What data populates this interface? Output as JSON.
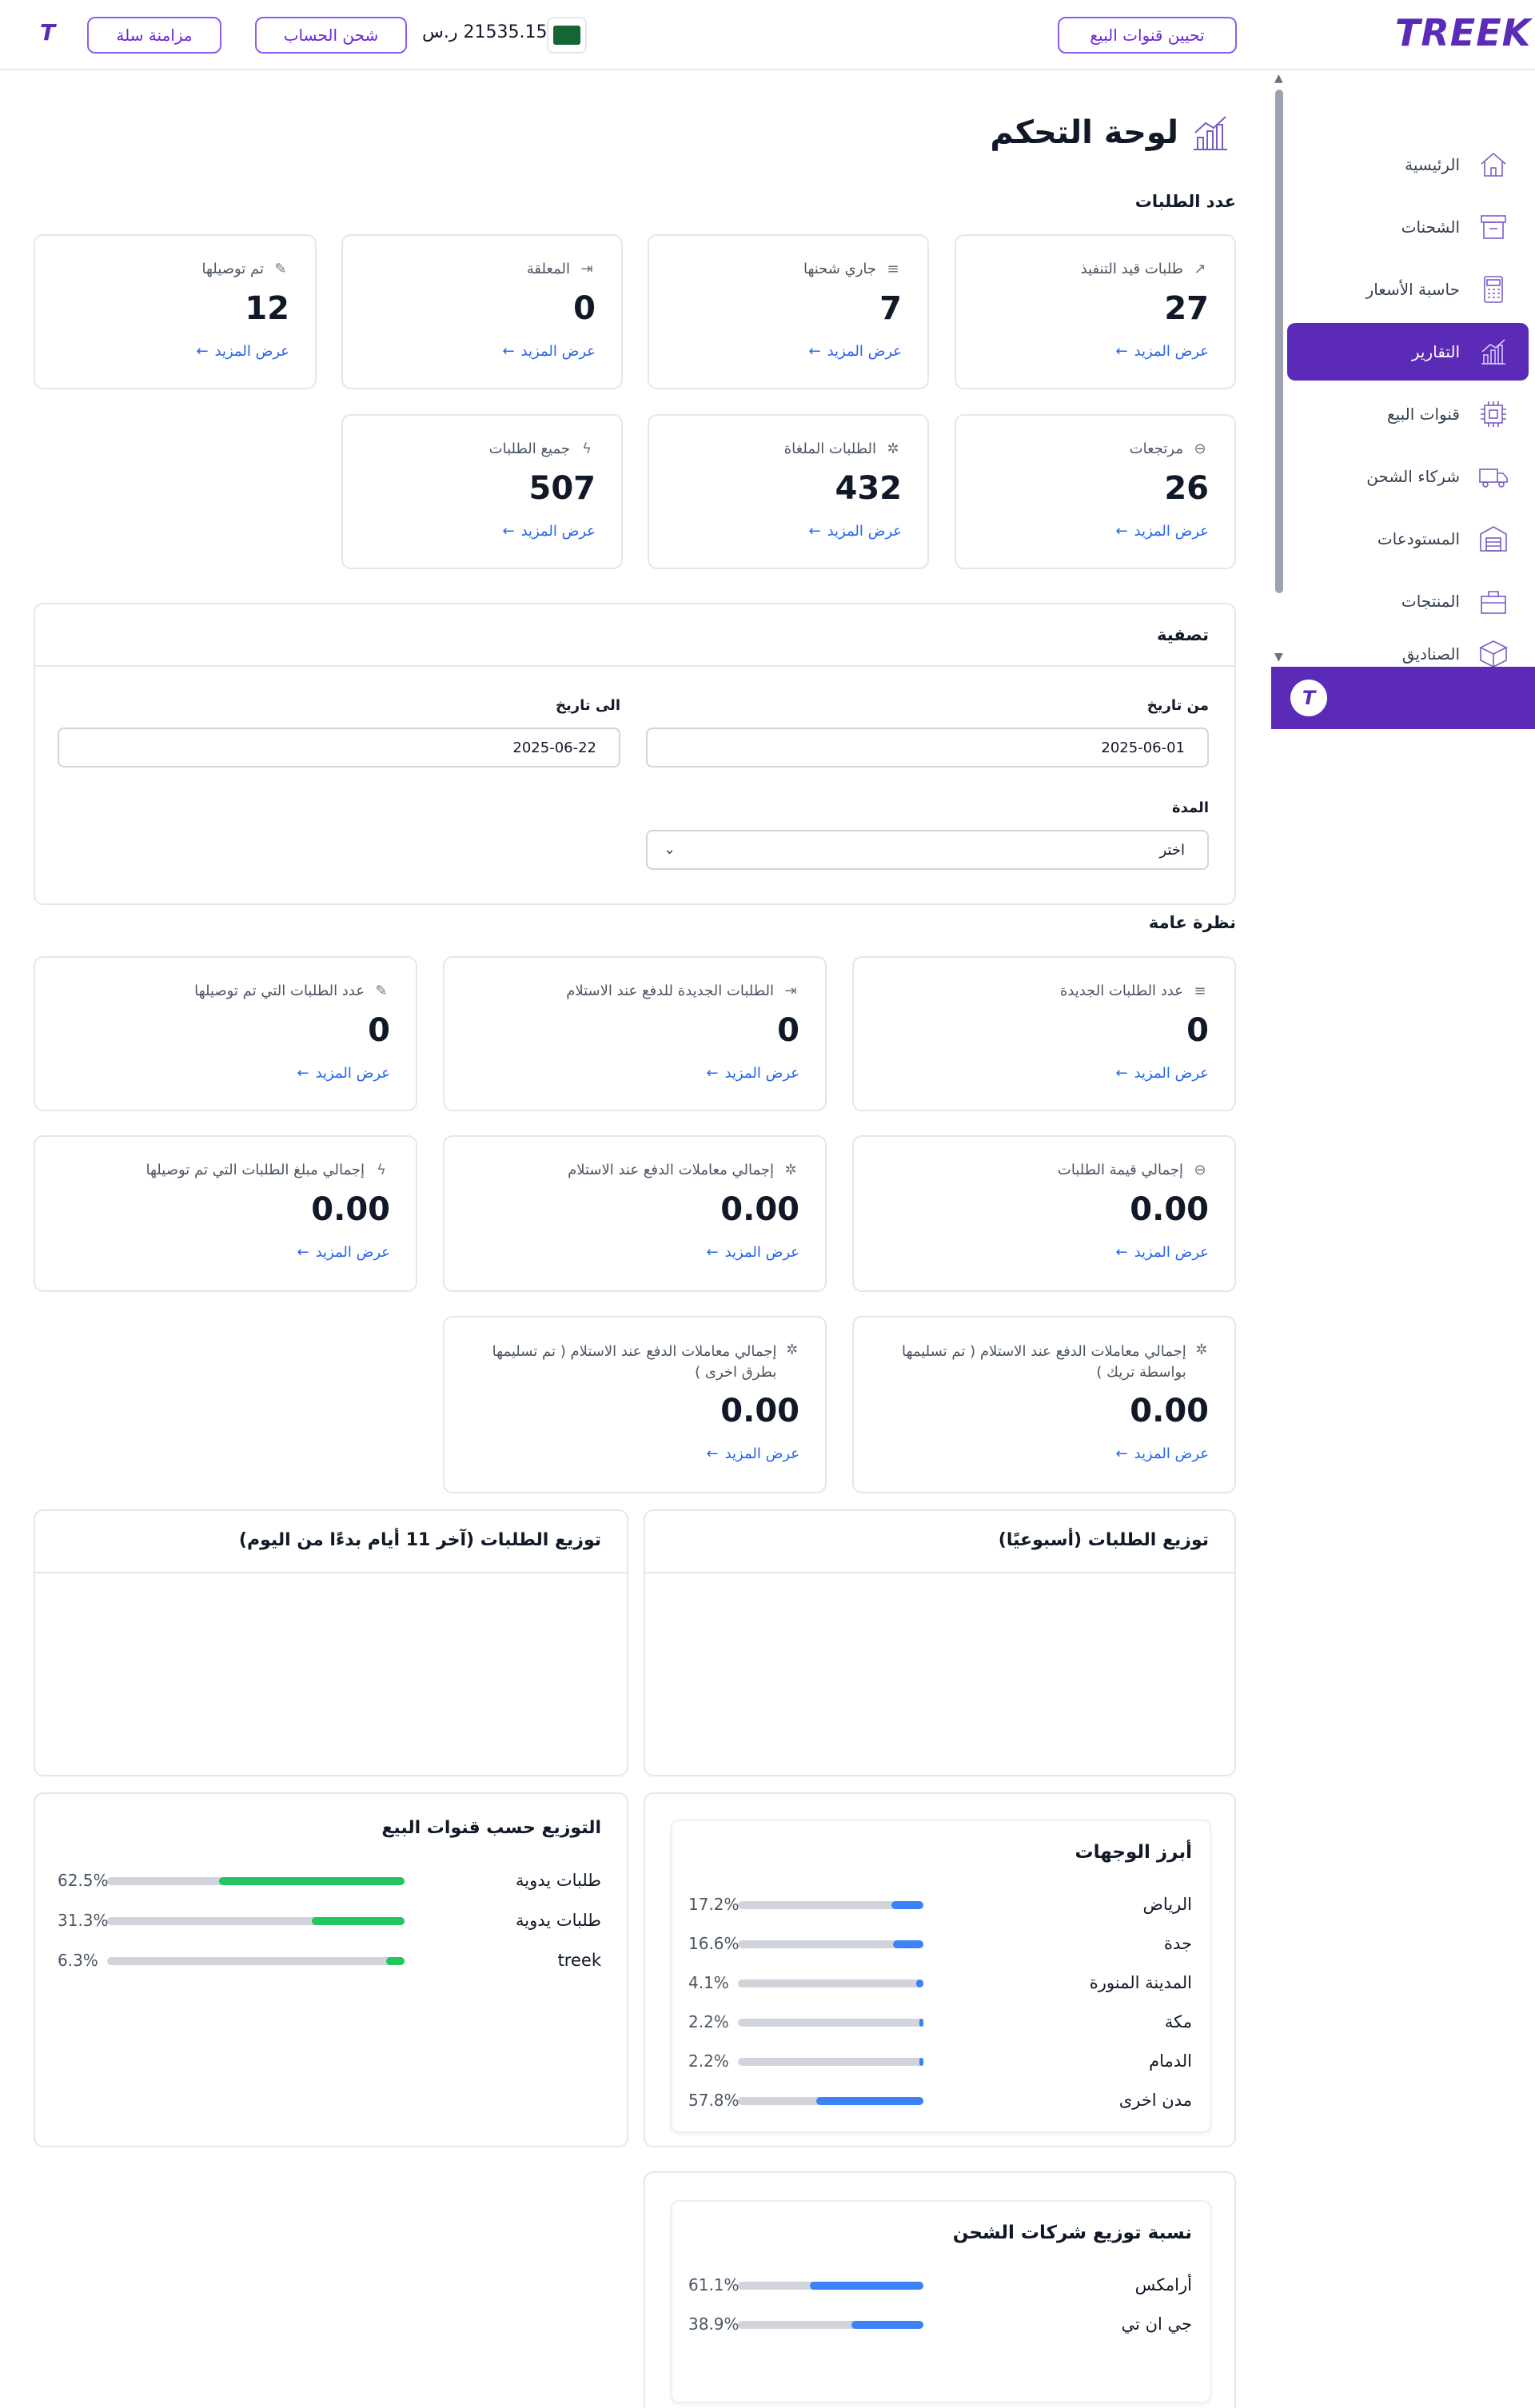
{
  "header": {
    "logo": "TREEK",
    "channels_button": "تحيين قنوات البيع",
    "balance": "21535.15 ر.س",
    "charge_button": "شحن الحساب",
    "sync_button": "مزامنة سلة",
    "small_logo": "T"
  },
  "sidebar": {
    "items": [
      {
        "label": "الرئيسية",
        "icon": "home-icon"
      },
      {
        "label": "الشحنات",
        "icon": "shipments-icon"
      },
      {
        "label": "حاسبة الأسعار",
        "icon": "calculator-icon"
      },
      {
        "label": "التقارير",
        "icon": "reports-icon"
      },
      {
        "label": "قنوات البيع",
        "icon": "channels-icon"
      },
      {
        "label": "شركاء الشحن",
        "icon": "truck-icon"
      },
      {
        "label": "المستودعات",
        "icon": "warehouse-icon"
      },
      {
        "label": "المنتجات",
        "icon": "products-icon"
      },
      {
        "label": "الصناديق",
        "icon": "box-icon"
      }
    ],
    "bottom_logo": "T"
  },
  "page": {
    "title": "لوحة التحكم"
  },
  "orders_section": {
    "title": "عدد الطلبات",
    "view_more": "عرض المزيد",
    "cards": [
      {
        "label": "طلبات قيد التنفيذ",
        "value": "27",
        "icon": "trend-icon"
      },
      {
        "label": "جاري شحنها",
        "value": "7",
        "icon": "database-icon"
      },
      {
        "label": "المعلقة",
        "value": "0",
        "icon": "exit-icon"
      },
      {
        "label": "تم توصيلها",
        "value": "12",
        "icon": "edit-icon"
      },
      {
        "label": "مرتجعات",
        "value": "26",
        "icon": "minus-circle-icon"
      },
      {
        "label": "الطلبات الملغاة",
        "value": "432",
        "icon": "spinner-icon"
      },
      {
        "label": "جميع الطلبات",
        "value": "507",
        "icon": "bolt-icon"
      }
    ]
  },
  "filter": {
    "title": "تصفية",
    "from_label": "من تاريخ",
    "from_value": "2025-06-01",
    "to_label": "الى تاريخ",
    "to_value": "2025-06-22",
    "period_label": "المدة",
    "period_value": "اختر"
  },
  "overview": {
    "title": "نظرة عامة",
    "view_more": "عرض المزيد",
    "cards": [
      {
        "label": "عدد الطلبات الجديدة",
        "value": "0",
        "icon": "database-icon"
      },
      {
        "label": "الطلبات الجديدة للدفع عند الاستلام",
        "value": "0",
        "icon": "exit-icon"
      },
      {
        "label": "عدد الطلبات التي تم توصيلها",
        "value": "0",
        "icon": "edit-icon"
      },
      {
        "label": "إجمالي قيمة الطلبات",
        "value": "0.00",
        "icon": "minus-circle-icon"
      },
      {
        "label": "إجمالي معاملات الدفع عند الاستلام",
        "value": "0.00",
        "icon": "spinner-icon"
      },
      {
        "label": "إجمالي مبلغ الطلبات التي تم توصيلها",
        "value": "0.00",
        "icon": "bolt-icon"
      },
      {
        "label": "إجمالي معاملات الدفع عند الاستلام ( تم تسليمها بواسطة تريك )",
        "value": "0.00",
        "icon": "spinner-icon"
      },
      {
        "label": "إجمالي معاملات الدفع عند الاستلام ( تم تسليمها بطرق اخرى )",
        "value": "0.00",
        "icon": "spinner-icon"
      }
    ]
  },
  "weekly_panel": {
    "title": "توزيع الطلبات (أسبوعيًا)"
  },
  "daily_panel": {
    "title": "توزيع الطلبات (آخر 11 أيام بدءًا من اليوم)"
  },
  "channels_distribution": {
    "title": "التوزيع حسب قنوات البيع",
    "color": "#22c55e",
    "rows": [
      {
        "name": "طلبات يدوية",
        "pct": "62.5%",
        "value": 62.5
      },
      {
        "name": "طلبات يدوية",
        "pct": "31.3%",
        "value": 31.3
      },
      {
        "name": "treek",
        "pct": "6.3%",
        "value": 6.3
      }
    ]
  },
  "destinations": {
    "title": "أبرز الوجهات",
    "color": "#3b82f6",
    "rows": [
      {
        "name": "الرياض",
        "pct": "17.2%",
        "value": 17.2
      },
      {
        "name": "جدة",
        "pct": "16.6%",
        "value": 16.6
      },
      {
        "name": "المدينة المنورة",
        "pct": "4.1%",
        "value": 4.1
      },
      {
        "name": "مكة",
        "pct": "2.2%",
        "value": 2.2
      },
      {
        "name": "الدمام",
        "pct": "2.2%",
        "value": 2.2
      },
      {
        "name": "مدن اخرى",
        "pct": "57.8%",
        "value": 57.8
      }
    ]
  },
  "carriers": {
    "title": "نسبة توزيع شركات الشحن",
    "color": "#3b82f6",
    "rows": [
      {
        "name": "أرامكس",
        "pct": "61.1%",
        "value": 61.1
      },
      {
        "name": "جي ان تي",
        "pct": "38.9%",
        "value": 38.9
      }
    ]
  }
}
